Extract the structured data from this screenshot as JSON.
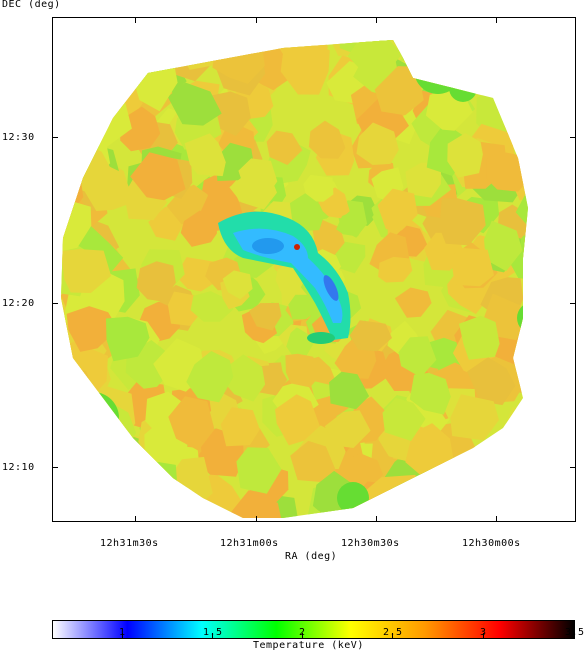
{
  "axes": {
    "y_title": "DEC (deg)",
    "x_title": "RA (deg)",
    "y_ticks": [
      "12:30",
      "12:20",
      "12:10"
    ],
    "x_ticks": [
      "12h31m30s",
      "12h31m00s",
      "12h30m30s",
      "12h30m00s"
    ]
  },
  "colorbar": {
    "title": "Temperature (keV)",
    "ticks": [
      "1",
      "1.5",
      "2",
      "2.5",
      "3",
      "3.5"
    ],
    "range": [
      0.6,
      3.5
    ],
    "colors": [
      "#ffffff",
      "#0000ff",
      "#00ffff",
      "#00ff00",
      "#ffff00",
      "#ff9900",
      "#ff0000",
      "#000000"
    ]
  },
  "image": {
    "description_colors": {
      "background": "#ccee33",
      "warm": "#eebb33",
      "cool": "#33ccee",
      "green": "#44dd33"
    }
  }
}
